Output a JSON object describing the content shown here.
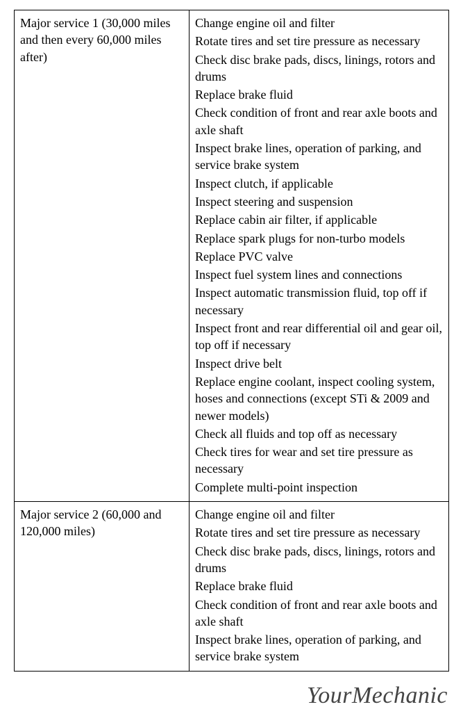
{
  "table": {
    "rows": [
      {
        "label": "Major service 1 (30,000 miles and then every 60,000 miles after)",
        "items": [
          "Change engine oil and filter",
          "Rotate tires and set tire pressure as necessary",
          "Check disc brake pads, discs, linings, rotors and drums",
          "Replace brake fluid",
          "Check condition of front and rear axle boots and axle shaft",
          "Inspect brake lines, operation of parking, and service brake system",
          "Inspect clutch, if applicable",
          "Inspect steering and suspension",
          "Replace cabin air filter, if applicable",
          "Replace spark plugs for non-turbo models",
          "Replace PVC valve",
          "Inspect fuel system lines and connections",
          "Inspect automatic transmission fluid, top off if necessary",
          "Inspect front and rear differential oil and gear oil, top off if necessary",
          "Inspect drive belt",
          "Replace engine coolant, inspect cooling system, hoses and connections (except STi & 2009 and newer models)",
          "Check all fluids and top off as necessary",
          "Check tires for wear and set tire pressure as necessary",
          "Complete multi-point inspection"
        ]
      },
      {
        "label": "Major service 2 (60,000 and 120,000 miles)",
        "items": [
          "Change engine oil and filter",
          "Rotate tires and set tire pressure as necessary",
          "Check disc brake pads, discs, linings, rotors and drums",
          "Replace brake fluid",
          "Check condition of front and rear axle boots and axle shaft",
          "Inspect brake lines, operation of parking, and service brake system"
        ]
      }
    ]
  },
  "footer": {
    "brand": "YourMechanic"
  }
}
